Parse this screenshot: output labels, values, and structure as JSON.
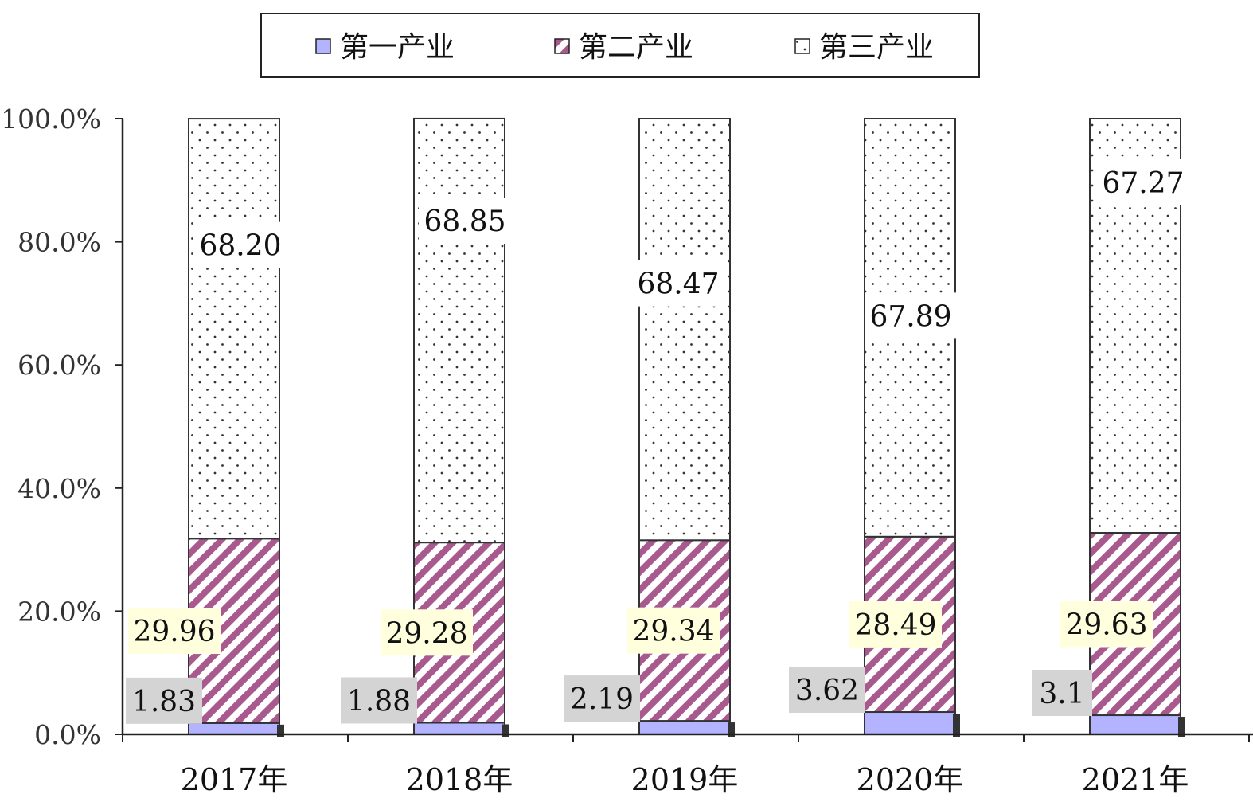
{
  "chart_data": {
    "type": "bar",
    "stacked": true,
    "categories": [
      "2017年",
      "2018年",
      "2019年",
      "2020年",
      "2021年"
    ],
    "series": [
      {
        "name": "第一产业",
        "values": [
          1.83,
          1.88,
          2.19,
          3.62,
          3.1
        ],
        "labels": [
          "1.83",
          "1.88",
          "2.19",
          "3.62",
          "3.1"
        ],
        "color": "#B3B3FF",
        "label_bg": "#D4D4D4"
      },
      {
        "name": "第二产业",
        "values": [
          29.96,
          29.28,
          29.34,
          28.49,
          29.63
        ],
        "labels": [
          "29.96",
          "29.28",
          "29.34",
          "28.49",
          "29.63"
        ],
        "color": "#A85A8E",
        "label_bg": "#FFFFDD"
      },
      {
        "name": "第三产业",
        "values": [
          68.2,
          68.85,
          68.47,
          67.89,
          67.27
        ],
        "labels": [
          "68.20",
          "68.85",
          "68.47",
          "67.89",
          "67.27"
        ],
        "color": "#333333",
        "label_bg": "#FFFFFF"
      }
    ],
    "y_ticks": [
      "0.0%",
      "20.0%",
      "40.0%",
      "60.0%",
      "80.0%",
      "100.0%"
    ],
    "ylim": [
      0,
      100
    ],
    "grid": false,
    "legend_position": "top"
  }
}
